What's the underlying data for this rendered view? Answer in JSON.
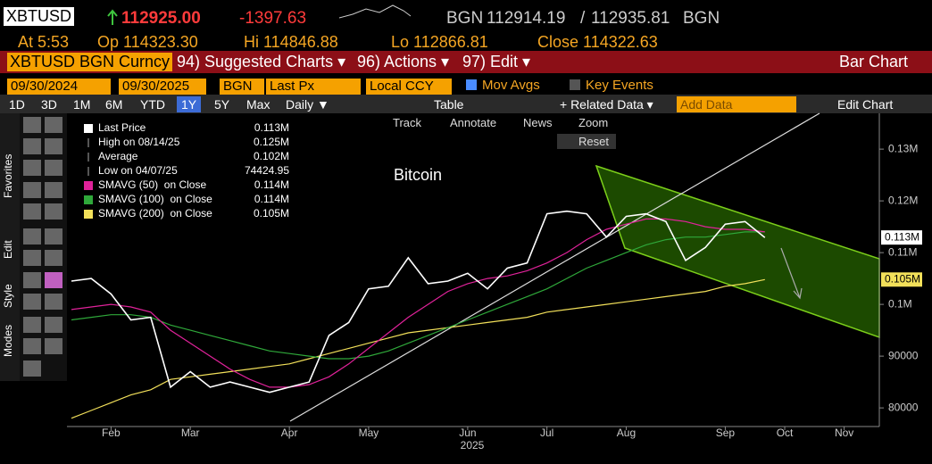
{
  "header": {
    "ticker": "XBTUSD",
    "price": "112925.00",
    "change": "-1397.63",
    "source": "BGN",
    "bid": "112914.19",
    "separator": "/",
    "ask": "112935.81",
    "source2": "BGN"
  },
  "quote": {
    "time": "At 5:53",
    "open": "Op 114323.30",
    "high": "Hi 114846.88",
    "low": "Lo 112866.81",
    "close": "Close 114322.63"
  },
  "menu": {
    "security": "XBTUSD BGN Curncy",
    "items": [
      "94) Suggested Charts ▾",
      "96) Actions ▾",
      "97) Edit ▾"
    ],
    "chart_type": "Bar Chart"
  },
  "controls": {
    "start": "09/30/2024",
    "end": "09/30/2025",
    "source": "BGN",
    "field": "Last Px",
    "currency": "Local CCY",
    "mov_avgs": "Mov Avgs",
    "key_events": "Key Events"
  },
  "toolbar": {
    "periods": [
      "1D",
      "3D",
      "1M",
      "6M",
      "YTD",
      "1Y",
      "5Y",
      "Max"
    ],
    "frequency": "Daily ▼",
    "table": "Table",
    "related": "+ Related Data ▾",
    "add_data": "Add Data",
    "edit_chart": "Edit Chart"
  },
  "chart_tools": [
    "Track",
    "Annotate",
    "News",
    "Zoom",
    "Reset"
  ],
  "side_tabs": [
    "Favorites",
    "Edit",
    "Style",
    "Modes"
  ],
  "chart_data": {
    "type": "line",
    "annotation": "Bitcoin",
    "xlabel": "2025",
    "categories": [
      null,
      null,
      "Feb",
      null,
      null,
      null,
      "Mar",
      null,
      null,
      null,
      null,
      "Apr",
      null,
      null,
      null,
      "May",
      null,
      null,
      null,
      null,
      "Jun",
      null,
      null,
      null,
      "Jul",
      null,
      null,
      null,
      "Aug",
      null,
      null,
      null,
      null,
      "Sep",
      null,
      null,
      "Oct",
      null,
      null,
      "Nov",
      null
    ],
    "series": [
      {
        "name": "Last Price",
        "legend_value": "0.113M",
        "color": "#ffffff",
        "values": [
          104500,
          105000,
          102000,
          97000,
          97500,
          84000,
          87000,
          84000,
          85000,
          84000,
          83000,
          84000,
          85000,
          94000,
          96500,
          103000,
          103500,
          109000,
          104000,
          104500,
          106000,
          103000,
          107000,
          108000,
          117500,
          118000,
          117500,
          113000,
          117000,
          117500,
          116000,
          108500,
          111000,
          115500,
          116000,
          112925,
          null,
          null,
          null,
          null,
          null
        ]
      },
      {
        "name": "SMAVG (50)  on Close",
        "legend_value": "0.114M",
        "color": "#e0229a",
        "values": [
          99000,
          99500,
          100000,
          99500,
          98500,
          95000,
          92500,
          90000,
          87500,
          85500,
          84000,
          84000,
          84500,
          86000,
          88500,
          91500,
          94500,
          97500,
          100000,
          102500,
          104000,
          105000,
          105500,
          106500,
          108000,
          110000,
          112500,
          114500,
          115500,
          116500,
          116500,
          116000,
          115000,
          114500,
          114500,
          114000,
          null,
          null,
          null,
          null,
          null
        ]
      },
      {
        "name": "SMAVG (100)  on Close",
        "legend_value": "0.114M",
        "color": "#2fa83a",
        "values": [
          97000,
          97500,
          98000,
          98000,
          97500,
          96000,
          95000,
          94000,
          93000,
          92000,
          91000,
          90500,
          90000,
          89500,
          89500,
          90000,
          91000,
          92500,
          94000,
          95500,
          97000,
          98500,
          100000,
          101500,
          103000,
          105000,
          107000,
          108500,
          110000,
          111500,
          112500,
          113000,
          113000,
          113500,
          114000,
          114000,
          null,
          null,
          null,
          null,
          null
        ]
      },
      {
        "name": "SMAVG (200)  on Close",
        "legend_value": "0.105M",
        "color": "#f2e05a",
        "values": [
          78000,
          79500,
          81000,
          82500,
          83500,
          85500,
          86000,
          86500,
          87000,
          87500,
          88000,
          88500,
          89500,
          90500,
          91500,
          92500,
          93500,
          94500,
          95000,
          95500,
          96000,
          96500,
          97000,
          97500,
          98500,
          99000,
          99500,
          100000,
          100500,
          101000,
          101500,
          102000,
          102500,
          103500,
          104000,
          104800,
          null,
          null,
          null,
          null,
          null
        ]
      }
    ],
    "stats": [
      {
        "name": "High on 08/14/25",
        "value": "0.125M"
      },
      {
        "name": "Average",
        "value": "0.102M"
      },
      {
        "name": "Low on 04/07/25",
        "value": "74424.95"
      }
    ],
    "ylim": [
      76400,
      136400
    ],
    "yticks": [
      80000,
      90000,
      {
        "value": 100000,
        "label": "0.1M"
      },
      {
        "value": 110000,
        "label": "0.11M"
      },
      {
        "value": 120000,
        "label": "0.12M"
      },
      {
        "value": 130000,
        "label": "0.13M"
      }
    ],
    "price_tags": [
      {
        "value": 112925,
        "label": "0.113M",
        "color": "#ffffff"
      },
      {
        "value": 104800,
        "label": "0.105M",
        "color": "#f2e05a"
      }
    ]
  }
}
